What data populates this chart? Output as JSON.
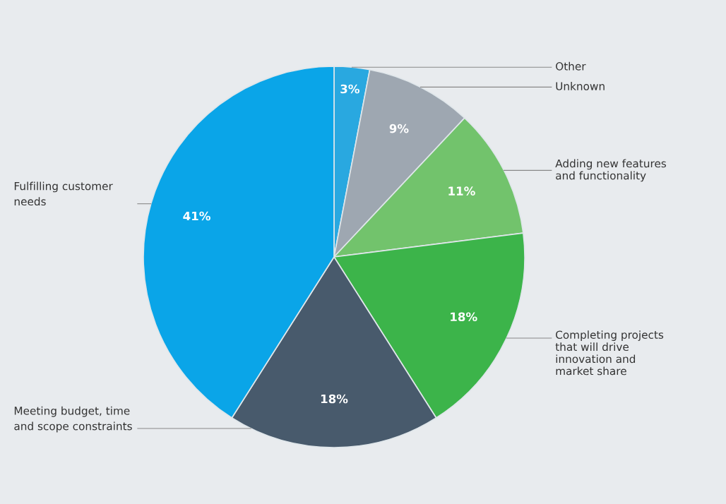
{
  "chart_data": {
    "type": "pie",
    "categories": [
      "Other",
      "Unknown",
      "Adding new features\nand functionality",
      "Completing projects\nthat will drive\ninnovation and\nmarket share",
      "Meeting budget, time\nand scope constraints",
      "Fulfilling customer\nneeds"
    ],
    "values": [
      3,
      9,
      11,
      18,
      18,
      41
    ],
    "value_labels": [
      "3%",
      "9%",
      "11%",
      "18%",
      "18%",
      "41%"
    ],
    "colors": [
      "#29a8e0",
      "#9ea7b1",
      "#72c36c",
      "#3cb44a",
      "#485a6c",
      "#0aa5e8"
    ]
  }
}
